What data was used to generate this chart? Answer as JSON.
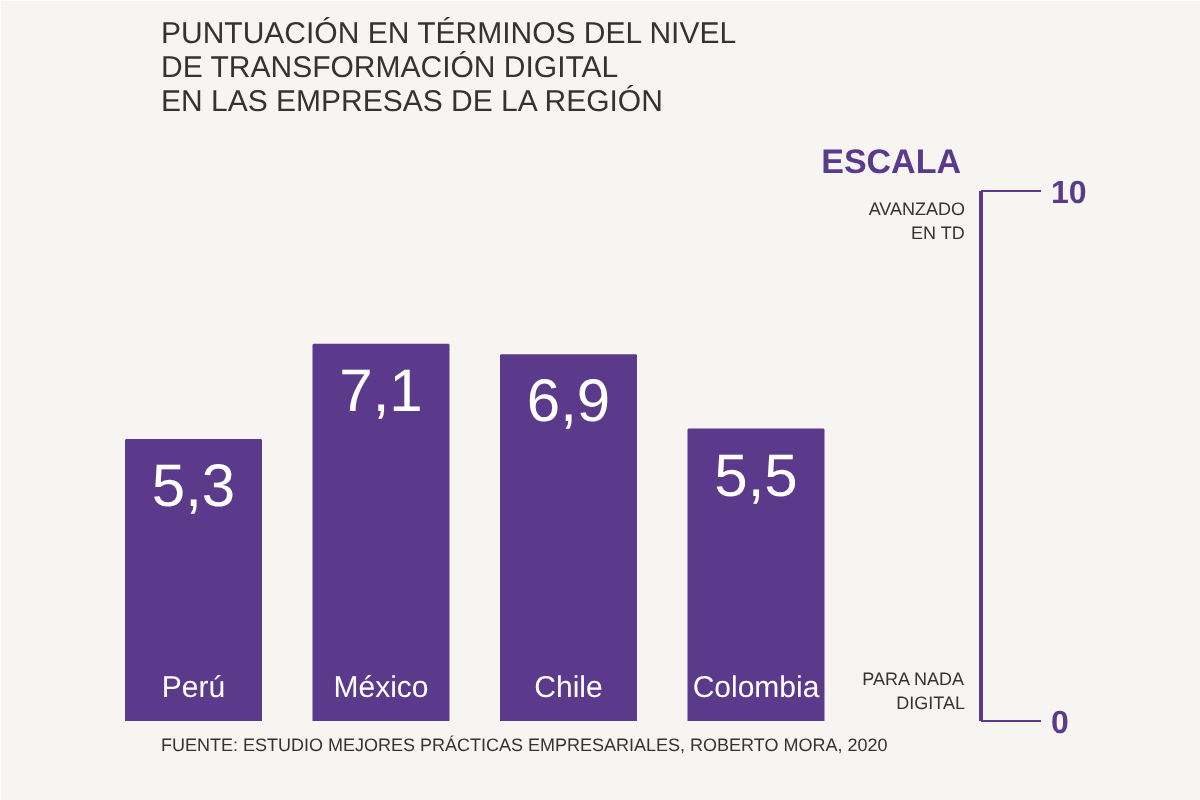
{
  "chart_data": {
    "type": "bar",
    "title": "PUNTUACIÓN EN TÉRMINOS DEL NIVEL\nDE TRANSFORMACIÓN DIGITAL\nEN LAS EMPRESAS DE LA REGIÓN",
    "categories": [
      "Perú",
      "México",
      "Chile",
      "Colombia"
    ],
    "values": [
      5.3,
      7.1,
      6.9,
      5.5
    ],
    "value_labels": [
      "5,3",
      "7,1",
      "6,9",
      "5,5"
    ],
    "color": "#5b3a8c",
    "ylim": [
      0,
      10
    ],
    "yticks": [
      0,
      10
    ],
    "grid": false,
    "annotations": [
      "ESCALA",
      "AVANZADO\nEN TD",
      "PARA NADA\nDIGITAL",
      "FUENTE: ESTUDIO MEJORES PRÁCTICAS EMPRESARIALES, ROBERTO MORA, 2020"
    ]
  }
}
